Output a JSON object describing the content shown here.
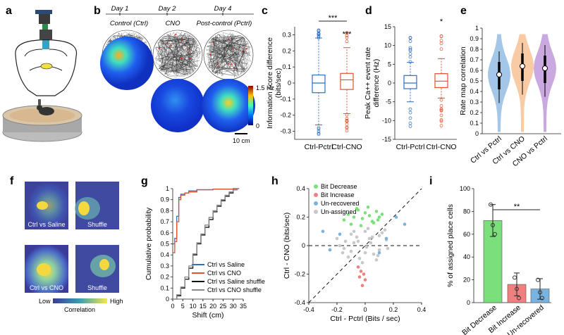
{
  "panels": {
    "a": "a",
    "b": "b",
    "c": "c",
    "d": "d",
    "e": "e",
    "f": "f",
    "g": "g",
    "h": "h",
    "i": "i"
  },
  "panel_b": {
    "days": [
      "Day 1",
      "Day 2",
      "Day 4"
    ],
    "conditions": [
      "Control (Ctrl)",
      "CNO",
      "Post-control (Pctrl)"
    ],
    "colorbar_max": "1.5 Hz",
    "colorbar_min": "0",
    "scale": "10 cm"
  },
  "panel_f": {
    "labels": [
      "Ctrl vs Saline",
      "Shuffle",
      "Ctrl vs CNO",
      "Shuffle"
    ],
    "cbar_low": "Low",
    "cbar_high": "High",
    "cbar_title": "Correlation"
  },
  "colors": {
    "blue": "#2f6fc0",
    "orange": "#e0512f",
    "green": "#7be07b",
    "red": "#f08080",
    "lightblue": "#79b3e0",
    "grey": "#c8c8c8",
    "violin_blue": "#5b9bd5",
    "violin_orange": "#f5a25d",
    "violin_purple": "#a064c8"
  },
  "chart_data": [
    {
      "id": "c",
      "type": "box",
      "ylabel": "Information score difference (bits/sec)",
      "categories": [
        "Ctrl-Pctrl",
        "Ctrl-CNO"
      ],
      "ylim": [
        -0.35,
        0.35
      ],
      "yticks": [
        "0.3",
        "0.2",
        "0.1",
        "0",
        "-0.1",
        "-0.2",
        "-0.3"
      ],
      "medians": [
        0.0,
        0.02
      ],
      "q1": [
        -0.06,
        -0.04
      ],
      "q3": [
        0.05,
        0.06
      ],
      "whisker_low": [
        -0.26,
        -0.19
      ],
      "whisker_high": [
        0.28,
        0.22
      ],
      "significance_between": "***",
      "significance_ctrl_cno": "***"
    },
    {
      "id": "d",
      "type": "box",
      "ylabel": "Peak Ca++ event rate difference (Hz)",
      "categories": [
        "Ctrl-Pctrl",
        "Ctrl-CNO"
      ],
      "ylim": [
        -15,
        15
      ],
      "yticks": [
        "15",
        "10",
        "5",
        "0",
        "-5",
        "-10",
        "-15"
      ],
      "medians": [
        0,
        0.5
      ],
      "q1": [
        -1.5,
        -1.2
      ],
      "q3": [
        2,
        2.5
      ],
      "whisker_low": [
        -5,
        -4
      ],
      "whisker_high": [
        5.5,
        6.5
      ],
      "significance_ctrl_cno": "*"
    },
    {
      "id": "e",
      "type": "violin",
      "ylabel": "Rate map correlation",
      "categories": [
        "Ctrl vs Pctrl",
        "Ctrl vs CNO",
        "CNO vs Pctrl"
      ],
      "ylim": [
        0,
        1
      ],
      "yticks": [
        "1",
        "0.9",
        "0.8",
        "0.7",
        "0.6",
        "0.5",
        "0.4",
        "0.3",
        "0.2",
        "0.1",
        "0"
      ],
      "medians": [
        0.56,
        0.64,
        0.62
      ]
    },
    {
      "id": "g",
      "type": "line",
      "ylabel": "Cumulative probability",
      "xlabel": "Shift (cm)",
      "xlim": [
        0,
        35
      ],
      "ylim": [
        0,
        1
      ],
      "xticks": [
        "0",
        "5",
        "10",
        "15",
        "20",
        "25",
        "30",
        "35"
      ],
      "yticks": [
        "1",
        "0.9",
        "0.8",
        "0.7",
        "0.6",
        "0.5",
        "0.4",
        "0.3",
        "0.2",
        "0.1",
        "0"
      ],
      "series": [
        {
          "name": "Ctrl vs Saline",
          "x": [
            0,
            1,
            2,
            3,
            4,
            6,
            8,
            12,
            20,
            30,
            33
          ],
          "y": [
            0.5,
            0.55,
            0.75,
            0.92,
            0.95,
            0.96,
            0.98,
            0.99,
            0.995,
            1,
            1
          ]
        },
        {
          "name": "Ctrl vs CNO",
          "x": [
            0,
            1,
            2,
            3,
            4,
            6,
            8,
            12,
            20,
            30,
            33
          ],
          "y": [
            0.42,
            0.52,
            0.7,
            0.9,
            0.94,
            0.96,
            0.97,
            0.99,
            0.995,
            1,
            1
          ]
        },
        {
          "name": "Ctrl vs Saline shuffle",
          "x": [
            0,
            2,
            4,
            6,
            8,
            10,
            12,
            14,
            16,
            18,
            20,
            22,
            24,
            26,
            28,
            30,
            32
          ],
          "y": [
            0,
            0.03,
            0.1,
            0.18,
            0.28,
            0.4,
            0.5,
            0.58,
            0.65,
            0.72,
            0.79,
            0.84,
            0.89,
            0.93,
            0.96,
            0.99,
            1
          ]
        },
        {
          "name": "Ctrl vs CNO shuffle",
          "x": [
            0,
            2,
            4,
            6,
            8,
            10,
            12,
            14,
            16,
            18,
            20,
            22,
            24,
            26,
            28,
            30,
            32
          ],
          "y": [
            0,
            0.04,
            0.11,
            0.2,
            0.3,
            0.41,
            0.51,
            0.59,
            0.67,
            0.74,
            0.8,
            0.85,
            0.9,
            0.94,
            0.97,
            0.99,
            1
          ]
        }
      ]
    },
    {
      "id": "h",
      "type": "scatter",
      "xlabel": "Ctrl - Pctrl (Bits / sec)",
      "ylabel": "Ctrl - CNO (bits/sec)",
      "xlim": [
        -0.4,
        0.4
      ],
      "ylim": [
        -0.4,
        0.4
      ],
      "xticks": [
        "-0.4",
        "-0.2",
        "0",
        "0.2",
        "0.4"
      ],
      "yticks": [
        "0.4",
        "0.2",
        "0",
        "-0.2",
        "-0.4"
      ],
      "legend": [
        "Bit Decrease",
        "Bit Increase",
        "Un-recovered",
        "Un-assigned"
      ],
      "series": [
        {
          "name": "Bit Decrease",
          "x": [
            -0.15,
            -0.12,
            -0.08,
            -0.05,
            -0.02,
            0.0,
            0.03,
            0.05,
            0.08,
            0.1,
            -0.1,
            0.02,
            0.06,
            -0.03,
            0.09,
            0.12,
            -0.06
          ],
          "y": [
            0.18,
            0.22,
            0.2,
            0.25,
            0.19,
            0.23,
            0.21,
            0.17,
            0.24,
            0.2,
            0.15,
            0.27,
            0.16,
            0.14,
            0.18,
            0.22,
            0.26
          ]
        },
        {
          "name": "Bit Increase",
          "x": [
            -0.05,
            -0.03,
            -0.01,
            0.0,
            -0.02,
            -0.04
          ],
          "y": [
            -0.15,
            -0.18,
            -0.2,
            -0.24,
            -0.28,
            -0.22
          ]
        },
        {
          "name": "Un-recovered",
          "x": [
            -0.25,
            -0.18,
            0.22,
            0.28,
            0.15,
            -0.3,
            0.1
          ],
          "y": [
            -0.03,
            0.08,
            0.2,
            0.15,
            0.05,
            0.1,
            -0.05
          ]
        },
        {
          "name": "Un-assigned",
          "x": [
            -0.2,
            -0.15,
            -0.1,
            -0.05,
            0.0,
            0.05,
            0.1,
            0.15,
            -0.12,
            -0.08,
            0.02,
            0.08,
            -0.18,
            0.12,
            -0.02,
            0.04,
            -0.06,
            0.06,
            -0.14,
            0.16,
            -0.1,
            0.0,
            0.1,
            -0.04,
            0.03,
            -0.08,
            0.09,
            -0.16,
            0.14,
            0.01
          ],
          "y": [
            0.05,
            -0.02,
            0.08,
            0.03,
            -0.05,
            0.06,
            -0.03,
            0.04,
            -0.08,
            0.1,
            0.12,
            -0.1,
            0.0,
            0.09,
            -0.12,
            0.02,
            0.06,
            -0.06,
            0.03,
            -0.02,
            -0.04,
            0.1,
            0.07,
            -0.09,
            0.05,
            0.02,
            -0.07,
            -0.05,
            0.11,
            -0.01
          ]
        }
      ]
    },
    {
      "id": "i",
      "type": "bar",
      "ylabel": "% of assigned place cells",
      "categories": [
        "Bit Decrease",
        "Bit Increase",
        "Un-recovered"
      ],
      "values": [
        72,
        16,
        12
      ],
      "errors": [
        14,
        10,
        9
      ],
      "points": [
        [
          86,
          68,
          60
        ],
        [
          22,
          12,
          4
        ],
        [
          20,
          9,
          4
        ]
      ],
      "ylim": [
        0,
        100
      ],
      "yticks": [
        "100",
        "80",
        "60",
        "40",
        "20",
        "0"
      ],
      "significance": "**"
    }
  ]
}
